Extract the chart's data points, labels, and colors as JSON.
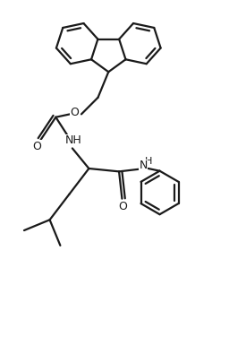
{
  "background_color": "#ffffff",
  "line_color": "#1a1a1a",
  "line_width": 1.6,
  "figsize": [
    2.56,
    3.76
  ],
  "dpi": 100,
  "xlim": [
    -2.5,
    4.5
  ],
  "ylim": [
    -5.5,
    5.5
  ]
}
